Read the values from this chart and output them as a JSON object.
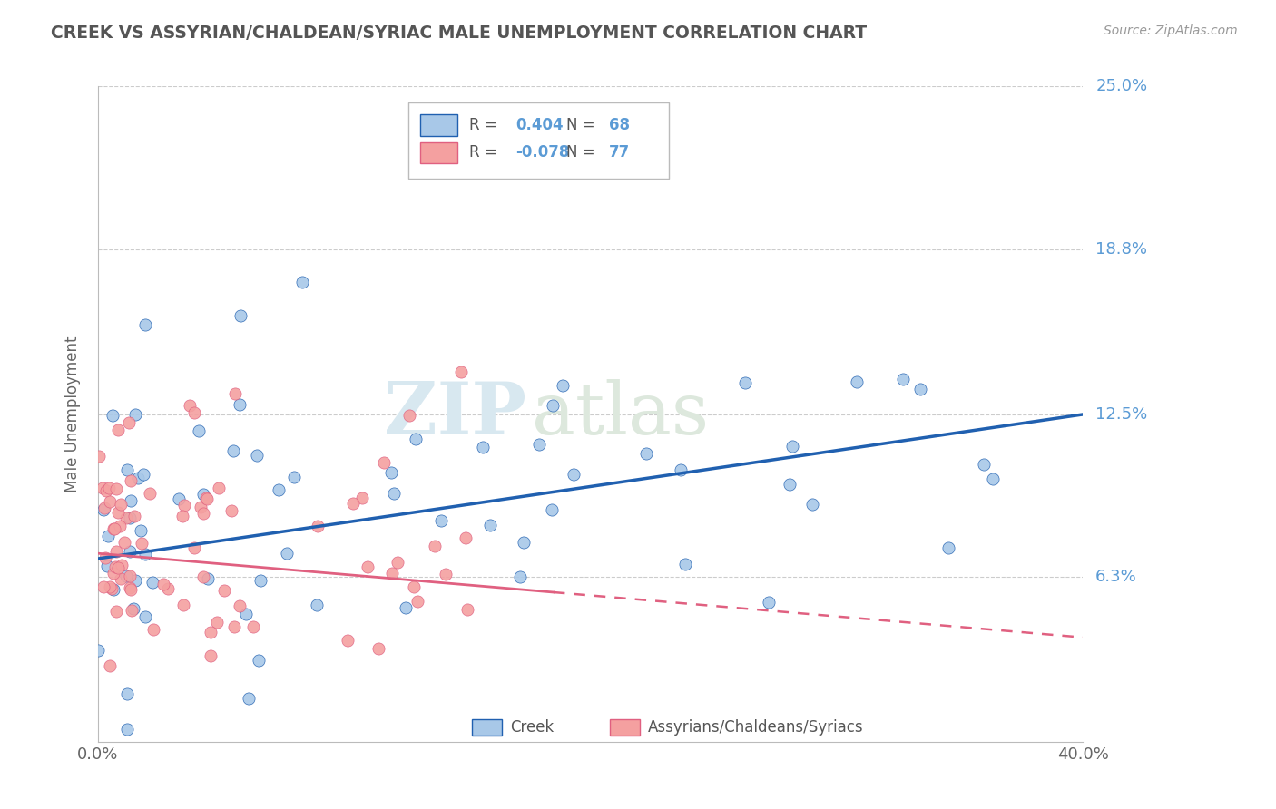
{
  "title": "CREEK VS ASSYRIAN/CHALDEAN/SYRIAC MALE UNEMPLOYMENT CORRELATION CHART",
  "source_text": "Source: ZipAtlas.com",
  "ylabel": "Male Unemployment",
  "xlim": [
    0.0,
    0.4
  ],
  "ylim": [
    0.0,
    0.25
  ],
  "x_ticks": [
    0.0,
    0.4
  ],
  "x_tick_labels": [
    "0.0%",
    "40.0%"
  ],
  "y_tick_positions": [
    0.063,
    0.125,
    0.188,
    0.25
  ],
  "y_tick_labels": [
    "6.3%",
    "12.5%",
    "18.8%",
    "25.0%"
  ],
  "creek_R": 0.404,
  "creek_N": 68,
  "assyrian_R": -0.078,
  "assyrian_N": 77,
  "watermark_zip": "ZIP",
  "watermark_atlas": "atlas",
  "legend_labels": [
    "Creek",
    "Assyrians/Chaldeans/Syriacs"
  ],
  "grid_color": "#cccccc",
  "title_color": "#555555",
  "right_label_color": "#5b9bd5",
  "creek_scatter_color": "#a8c8e8",
  "assyrian_scatter_color": "#f4a0a0",
  "creek_line_color": "#2060b0",
  "assyrian_line_color": "#e06080",
  "background_color": "#ffffff",
  "creek_seed": 12345,
  "assyrian_seed": 9999
}
